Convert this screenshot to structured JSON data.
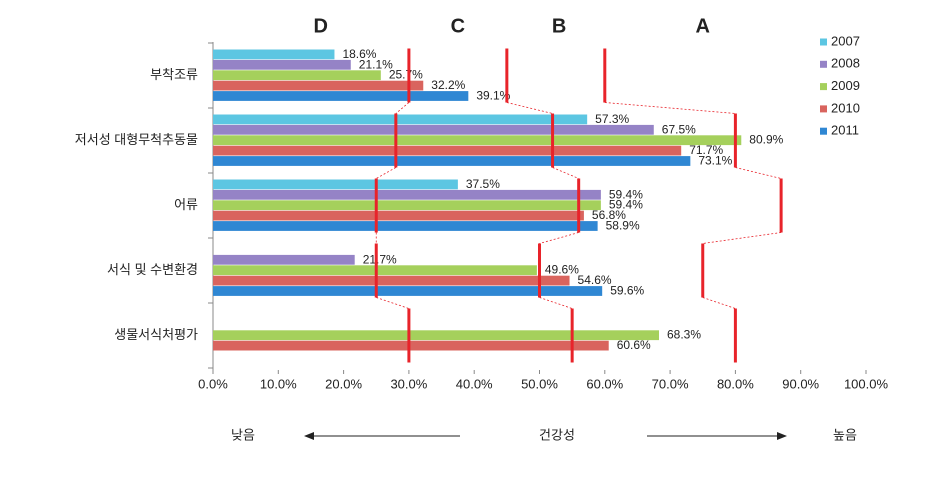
{
  "chart_data": {
    "type": "bar",
    "categories": [
      "부착조류",
      "저서성 대형무척추동물",
      "어류",
      "서식 및 수변환경",
      "생물서식처평가"
    ],
    "series": [
      {
        "name": "2007",
        "color": "#5cc6e2",
        "values": [
          18.6,
          57.3,
          37.5,
          null,
          null
        ],
        "value_labels": [
          "18.6%",
          "57.3%",
          "37.5%",
          null,
          null
        ]
      },
      {
        "name": "2008",
        "color": "#9583c6",
        "values": [
          21.1,
          67.5,
          59.4,
          21.7,
          null
        ],
        "value_labels": [
          "21.1%",
          "67.5%",
          "59.4%",
          "21.7%",
          null
        ]
      },
      {
        "name": "2009",
        "color": "#a5d05c",
        "values": [
          25.7,
          80.9,
          59.4,
          49.6,
          68.3
        ],
        "value_labels": [
          "25.7%",
          "80.9%",
          "59.4%",
          "49.6%",
          "68.3%"
        ]
      },
      {
        "name": "2010",
        "color": "#d9645e",
        "values": [
          32.2,
          71.7,
          56.8,
          54.6,
          60.6
        ],
        "value_labels": [
          "32.2%",
          "71.7%",
          "56.8%",
          "54.6%",
          "60.6%"
        ]
      },
      {
        "name": "2011",
        "color": "#2f87d3",
        "values": [
          39.1,
          73.1,
          58.9,
          59.6,
          null
        ],
        "value_labels": [
          "39.1%",
          "73.1%",
          "58.9%",
          "59.6%",
          null
        ]
      }
    ],
    "xlim": [
      0,
      100
    ],
    "xticks": [
      {
        "value": 0,
        "label": "0.0%"
      },
      {
        "value": 10,
        "label": "10.0%"
      },
      {
        "value": 20,
        "label": "20.0%"
      },
      {
        "value": 30,
        "label": "30.0%"
      },
      {
        "value": 40,
        "label": "40.0%"
      },
      {
        "value": 50,
        "label": "50.0%"
      },
      {
        "value": 60,
        "label": "60.0%"
      },
      {
        "value": 70,
        "label": "70.0%"
      },
      {
        "value": 80,
        "label": "80.0%"
      },
      {
        "value": 90,
        "label": "90.0%"
      },
      {
        "value": 100,
        "label": "100.0%"
      }
    ],
    "thresholds": [
      [
        30,
        45,
        60
      ],
      [
        28,
        52,
        80
      ],
      [
        25,
        56,
        87
      ],
      [
        25,
        50,
        75
      ],
      [
        30,
        55,
        80
      ]
    ],
    "threshold_color": "#e8232a",
    "grades": [
      "D",
      "C",
      "B",
      "A"
    ],
    "annotations": {
      "low": "낮음",
      "axis": "건강성",
      "high": "높음"
    }
  }
}
